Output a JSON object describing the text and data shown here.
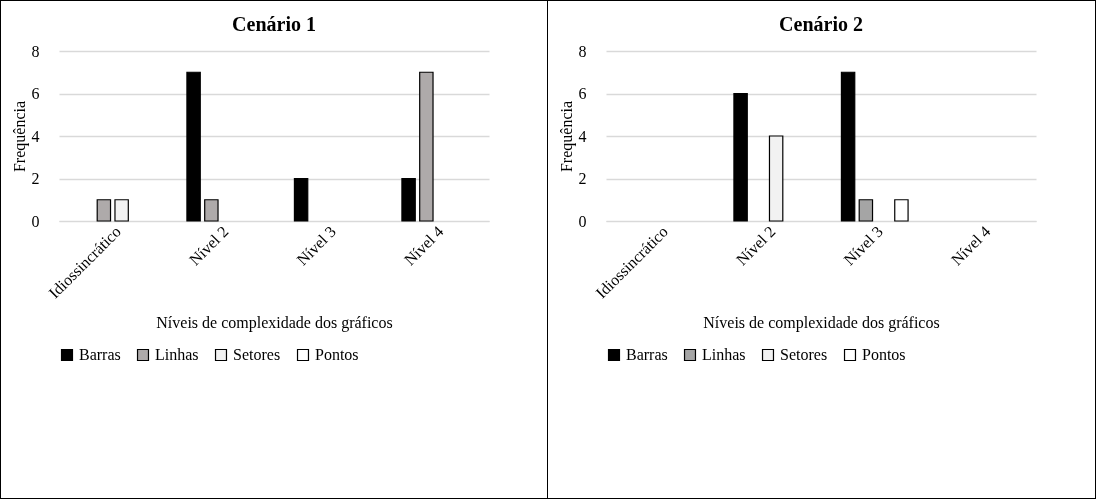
{
  "chart_data": [
    {
      "type": "bar",
      "title": "Cenário 1",
      "xlabel": "Níveis de complexidade dos gráficos",
      "ylabel": "Frequência",
      "categories": [
        "Idiossincrático",
        "Nível 2",
        "Nível 3",
        "Nível 4"
      ],
      "series": [
        {
          "name": "Barras",
          "color": "#000000",
          "values": [
            null,
            7,
            2,
            2
          ]
        },
        {
          "name": "Linhas",
          "color": "#aeaaaa",
          "values": [
            1,
            1,
            null,
            7
          ]
        },
        {
          "name": "Setores",
          "color": "#f2f2f2",
          "values": [
            1,
            null,
            null,
            null
          ]
        },
        {
          "name": "Pontos",
          "color": "#ffffff",
          "values": [
            null,
            null,
            null,
            null
          ]
        }
      ],
      "ylim": [
        0,
        8
      ],
      "yticks": [
        0,
        2,
        4,
        6,
        8
      ],
      "grid": "y",
      "legend": "bottom"
    },
    {
      "type": "bar",
      "title": "Cenário 2",
      "xlabel": "Níveis de complexidade dos gráficos",
      "ylabel": "Frequência",
      "categories": [
        "Idiossincrático",
        "Nível 2",
        "Nível 3",
        "Nível 4"
      ],
      "series": [
        {
          "name": "Barras",
          "color": "#000000",
          "values": [
            null,
            6,
            7,
            null
          ]
        },
        {
          "name": "Linhas",
          "color": "#a5a5a5",
          "values": [
            null,
            null,
            1,
            null
          ]
        },
        {
          "name": "Setores",
          "color": "#f2f2f2",
          "values": [
            null,
            4,
            null,
            null
          ]
        },
        {
          "name": "Pontos",
          "color": "#ffffff",
          "values": [
            null,
            null,
            1,
            null
          ]
        }
      ],
      "ylim": [
        0,
        8
      ],
      "yticks": [
        0,
        2,
        4,
        6,
        8
      ],
      "grid": "y",
      "legend": "bottom"
    }
  ]
}
